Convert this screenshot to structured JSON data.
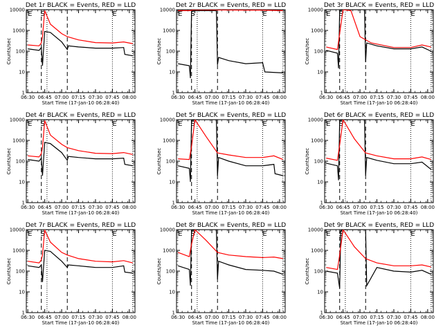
{
  "time_ticks": [
    "06:30",
    "06:45",
    "07:00",
    "07:15",
    "07:30",
    "07:45",
    "08:00"
  ],
  "y_ticks": [
    "1",
    "10",
    "100",
    "1000",
    "10000"
  ],
  "xlabel": "Start Time (17-Jan-10 06:28:40)",
  "ylabel": "Counts/sec",
  "chart_data": [
    {
      "type": "line",
      "detector": "1r",
      "title": "Det 1r BLACK = Events, RED = LLD",
      "xlabel": "Start Time (17-Jan-10 06:28:40)",
      "ylabel": "Counts/sec",
      "x_range": [
        "06:28:40",
        "08:05"
      ],
      "y_range": [
        1,
        10000
      ],
      "y_scale": "log",
      "markers": {
        "E_times": [
          "06:30",
          "07:45"
        ],
        "S_times": [
          "06:43",
          "06:43"
        ]
      },
      "dashed_times": [
        "06:42",
        "07:05"
      ],
      "dotted_times": [
        "06:47",
        "07:45",
        "08:03"
      ],
      "series": [
        {
          "name": "BLACK = Events",
          "color": "#000000",
          "x": [
            "06:30",
            "06:40",
            "06:42",
            "06:43",
            "06:45",
            "06:50",
            "07:00",
            "07:05",
            "07:06",
            "07:15",
            "07:30",
            "07:45",
            "07:55",
            "07:56",
            "08:03"
          ],
          "values": [
            130,
            110,
            150,
            20,
            900,
            800,
            280,
            120,
            180,
            160,
            140,
            140,
            150,
            70,
            60
          ]
        },
        {
          "name": "RED = LLD",
          "color": "#ff0000",
          "x": [
            "06:30",
            "06:40",
            "06:42",
            "06:43",
            "06:45",
            "06:50",
            "07:00",
            "07:05",
            "07:15",
            "07:30",
            "07:45",
            "07:55",
            "08:03"
          ],
          "values": [
            200,
            180,
            250,
            500,
            9000,
            2000,
            700,
            500,
            350,
            260,
            250,
            280,
            230
          ]
        }
      ]
    },
    {
      "type": "line",
      "detector": "2r",
      "title": "Det 2r BLACK = Events, RED = LLD",
      "xlabel": "Start Time (17-Jan-10 06:28:40)",
      "ylabel": "Counts/sec",
      "x_range": [
        "06:28:40",
        "08:05"
      ],
      "y_range": [
        1,
        10000
      ],
      "y_scale": "log",
      "markers": {
        "E_times": [
          "06:30",
          "07:45"
        ],
        "S_times": [
          "06:43",
          "06:43"
        ]
      },
      "dashed_times": [
        "06:42",
        "07:05"
      ],
      "dotted_times": [
        "06:47",
        "07:45",
        "08:03"
      ],
      "series": [
        {
          "name": "BLACK = Events",
          "color": "#000000",
          "x": [
            "06:30",
            "06:40",
            "06:41",
            "06:42",
            "06:43",
            "07:04",
            "07:05",
            "07:06",
            "07:15",
            "07:30",
            "07:45",
            "07:47",
            "08:03"
          ],
          "values": [
            25,
            20,
            5,
            8000,
            9000,
            9000,
            22,
            50,
            35,
            25,
            28,
            10,
            9
          ]
        },
        {
          "name": "RED = LLD",
          "color": "#ff0000",
          "x": [
            "06:30",
            "06:41",
            "06:42",
            "06:45",
            "07:00",
            "07:30",
            "07:45",
            "08:03"
          ],
          "values": [
            9000,
            9000,
            9500,
            10000,
            9800,
            9500,
            9500,
            9000
          ]
        }
      ]
    },
    {
      "type": "line",
      "detector": "3r",
      "title": "Det 3r BLACK = Events, RED = LLD",
      "xlabel": "Start Time (17-Jan-10 06:28:40)",
      "ylabel": "Counts/sec",
      "x_range": [
        "06:28:40",
        "08:05"
      ],
      "y_range": [
        1,
        10000
      ],
      "y_scale": "log",
      "markers": {
        "E_times": [
          "06:30",
          "07:45"
        ],
        "S_times": [
          "06:43",
          "06:43"
        ]
      },
      "dashed_times": [
        "06:42",
        "07:05"
      ],
      "dotted_times": [
        "06:47",
        "07:45",
        "08:03"
      ],
      "series": [
        {
          "name": "BLACK = Events",
          "color": "#000000",
          "x": [
            "06:30",
            "06:40",
            "06:41",
            "06:42",
            "06:45",
            "07:04",
            "07:05",
            "07:06",
            "07:15",
            "07:30",
            "07:45",
            "07:55",
            "08:03"
          ],
          "values": [
            110,
            80,
            15,
            9000,
            10000,
            10000,
            30,
            250,
            180,
            130,
            130,
            160,
            100
          ]
        },
        {
          "name": "RED = LLD",
          "color": "#ff0000",
          "x": [
            "06:30",
            "06:40",
            "06:42",
            "06:45",
            "06:52",
            "07:00",
            "07:10",
            "07:30",
            "07:45",
            "07:55",
            "08:03"
          ],
          "values": [
            160,
            120,
            700,
            10000,
            9000,
            500,
            250,
            150,
            150,
            200,
            160
          ]
        }
      ]
    },
    {
      "type": "line",
      "detector": "4r",
      "title": "Det 4r BLACK = Events, RED = LLD",
      "xlabel": "Start Time (17-Jan-10 06:28:40)",
      "ylabel": "Counts/sec",
      "x_range": [
        "06:28:40",
        "08:05"
      ],
      "y_range": [
        1,
        10000
      ],
      "y_scale": "log",
      "markers": {
        "E_times": [
          "06:30",
          "07:45"
        ],
        "S_times": [
          "06:43",
          "06:43"
        ]
      },
      "dashed_times": [
        "06:42",
        "07:05"
      ],
      "dotted_times": [
        "06:47",
        "07:45",
        "08:03"
      ],
      "series": [
        {
          "name": "BLACK = Events",
          "color": "#000000",
          "x": [
            "06:30",
            "06:40",
            "06:42",
            "06:43",
            "06:45",
            "06:50",
            "07:00",
            "07:05",
            "07:06",
            "07:15",
            "07:30",
            "07:45",
            "07:55",
            "07:56",
            "08:03"
          ],
          "values": [
            120,
            100,
            140,
            20,
            800,
            700,
            260,
            110,
            170,
            150,
            130,
            130,
            140,
            70,
            60
          ]
        },
        {
          "name": "RED = LLD",
          "color": "#ff0000",
          "x": [
            "06:30",
            "06:40",
            "06:42",
            "06:43",
            "06:45",
            "06:50",
            "07:00",
            "07:05",
            "07:15",
            "07:30",
            "07:45",
            "07:55",
            "08:03"
          ],
          "values": [
            180,
            160,
            230,
            450,
            9000,
            1800,
            650,
            450,
            320,
            240,
            230,
            260,
            210
          ]
        }
      ]
    },
    {
      "type": "line",
      "detector": "5r",
      "title": "Det 5r BLACK = Events, RED = LLD",
      "xlabel": "Start Time (17-Jan-10 06:28:40)",
      "ylabel": "Counts/sec",
      "x_range": [
        "06:28:40",
        "08:05"
      ],
      "y_range": [
        1,
        10000
      ],
      "y_scale": "log",
      "markers": {
        "E_times": [
          "06:30",
          "07:45"
        ],
        "S_times": [
          "06:43",
          "06:43"
        ]
      },
      "dashed_times": [
        "06:42",
        "07:05"
      ],
      "dotted_times": [
        "06:47",
        "07:45",
        "08:03"
      ],
      "series": [
        {
          "name": "BLACK = Events",
          "color": "#000000",
          "x": [
            "06:30",
            "06:40",
            "06:41",
            "06:42",
            "06:45",
            "07:04",
            "07:05",
            "07:06",
            "07:15",
            "07:30",
            "07:45",
            "07:55",
            "07:56",
            "08:03"
          ],
          "values": [
            60,
            45,
            10,
            9000,
            10000,
            10000,
            20,
            150,
            100,
            60,
            60,
            70,
            25,
            20
          ]
        },
        {
          "name": "RED = LLD",
          "color": "#ff0000",
          "x": [
            "06:30",
            "06:40",
            "06:42",
            "06:45",
            "06:55",
            "07:05",
            "07:15",
            "07:30",
            "07:45",
            "07:55",
            "08:03"
          ],
          "values": [
            130,
            120,
            500,
            10000,
            1500,
            250,
            200,
            150,
            150,
            180,
            120
          ]
        }
      ]
    },
    {
      "type": "line",
      "detector": "6r",
      "title": "Det 6r BLACK = Events, RED = LLD",
      "xlabel": "Start Time (17-Jan-10 06:28:40)",
      "ylabel": "Counts/sec",
      "x_range": [
        "06:28:40",
        "08:05"
      ],
      "y_range": [
        1,
        10000
      ],
      "y_scale": "log",
      "markers": {
        "E_times": [
          "06:30",
          "07:45"
        ],
        "S_times": [
          "06:43",
          "06:43"
        ]
      },
      "dashed_times": [
        "06:42",
        "07:05"
      ],
      "dotted_times": [
        "06:47",
        "07:45",
        "08:03"
      ],
      "series": [
        {
          "name": "BLACK = Events",
          "color": "#000000",
          "x": [
            "06:30",
            "06:40",
            "06:41",
            "06:42",
            "06:45",
            "07:04",
            "07:05",
            "07:06",
            "07:15",
            "07:30",
            "07:45",
            "07:55",
            "08:03"
          ],
          "values": [
            80,
            60,
            12,
            9000,
            10000,
            10000,
            20,
            150,
            110,
            75,
            75,
            90,
            40
          ]
        },
        {
          "name": "RED = LLD",
          "color": "#ff0000",
          "x": [
            "06:30",
            "06:40",
            "06:42",
            "06:45",
            "06:55",
            "07:05",
            "07:15",
            "07:30",
            "07:45",
            "07:55",
            "08:03"
          ],
          "values": [
            140,
            110,
            600,
            10000,
            1200,
            250,
            180,
            130,
            130,
            160,
            120
          ]
        }
      ]
    },
    {
      "type": "line",
      "detector": "7r",
      "title": "Det 7r BLACK = Events, RED = LLD",
      "xlabel": "Start Time (17-Jan-10 06:28:40)",
      "ylabel": "Counts/sec",
      "x_range": [
        "06:28:40",
        "08:05"
      ],
      "y_range": [
        1,
        10000
      ],
      "y_scale": "log",
      "markers": {
        "E_times": [
          "06:30",
          "07:45"
        ],
        "S_times": [
          "06:43",
          "06:43"
        ]
      },
      "dashed_times": [
        "06:42",
        "07:05"
      ],
      "dotted_times": [
        "06:47",
        "07:45",
        "08:03"
      ],
      "series": [
        {
          "name": "BLACK = Events",
          "color": "#000000",
          "x": [
            "06:30",
            "06:40",
            "06:42",
            "06:43",
            "06:45",
            "06:50",
            "07:00",
            "07:05",
            "07:06",
            "07:15",
            "07:30",
            "07:45",
            "07:55",
            "07:56",
            "08:03"
          ],
          "values": [
            180,
            150,
            200,
            30,
            1000,
            900,
            300,
            150,
            200,
            180,
            150,
            150,
            180,
            90,
            80
          ]
        },
        {
          "name": "RED = LLD",
          "color": "#ff0000",
          "x": [
            "06:30",
            "06:40",
            "06:42",
            "06:43",
            "06:45",
            "06:50",
            "07:00",
            "07:05",
            "07:15",
            "07:30",
            "07:45",
            "07:55",
            "08:03"
          ],
          "values": [
            300,
            250,
            350,
            600,
            9500,
            2500,
            800,
            600,
            400,
            300,
            280,
            320,
            250
          ]
        }
      ]
    },
    {
      "type": "line",
      "detector": "8r",
      "title": "Det 8r BLACK = Events, RED = LLD",
      "xlabel": "Start Time (17-Jan-10 06:28:40)",
      "ylabel": "Counts/sec",
      "x_range": [
        "06:28:40",
        "08:05"
      ],
      "y_range": [
        1,
        10000
      ],
      "y_scale": "log",
      "markers": {
        "E_times": [
          "06:30",
          "07:45"
        ],
        "S_times": [
          "06:43",
          "06:43"
        ]
      },
      "dashed_times": [
        "06:42",
        "07:05"
      ],
      "dotted_times": [
        "06:47",
        "07:45",
        "08:03"
      ],
      "series": [
        {
          "name": "BLACK = Events",
          "color": "#000000",
          "x": [
            "06:30",
            "06:40",
            "06:41",
            "06:42",
            "06:45",
            "07:04",
            "07:05",
            "07:06",
            "07:15",
            "07:30",
            "07:45",
            "07:55",
            "08:03"
          ],
          "values": [
            180,
            120,
            20,
            9000,
            10000,
            10000,
            40,
            300,
            200,
            120,
            110,
            100,
            70
          ]
        },
        {
          "name": "RED = LLD",
          "color": "#ff0000",
          "x": [
            "06:30",
            "06:40",
            "06:42",
            "06:45",
            "06:55",
            "07:05",
            "07:15",
            "07:30",
            "07:45",
            "07:55",
            "08:03"
          ],
          "values": [
            800,
            500,
            2000,
            10000,
            3000,
            800,
            600,
            500,
            450,
            480,
            400
          ]
        }
      ]
    },
    {
      "type": "line",
      "detector": "9r",
      "title": "Det 9r BLACK = Events, RED = LLD",
      "xlabel": "Start Time (17-Jan-10 06:28:40)",
      "ylabel": "Counts/sec",
      "x_range": [
        "06:28:40",
        "08:05"
      ],
      "y_range": [
        1,
        10000
      ],
      "y_scale": "log",
      "markers": {
        "E_times": [
          "06:30",
          "07:45"
        ],
        "S_times": [
          "06:43",
          "06:43"
        ]
      },
      "dashed_times": [
        "06:42",
        "07:05"
      ],
      "dotted_times": [
        "06:47",
        "07:45",
        "08:03"
      ],
      "series": [
        {
          "name": "BLACK = Events",
          "color": "#000000",
          "x": [
            "06:30",
            "06:40",
            "06:42",
            "06:43",
            "06:45",
            "06:50",
            "07:00",
            "07:05",
            "07:06",
            "07:15",
            "07:30",
            "07:45",
            "07:55",
            "08:03"
          ],
          "values": [
            100,
            80,
            15,
            9000,
            10000,
            10000,
            10000,
            10000,
            20,
            150,
            100,
            90,
            110,
            70
          ]
        },
        {
          "name": "RED = LLD",
          "color": "#ff0000",
          "x": [
            "06:30",
            "06:40",
            "06:42",
            "06:45",
            "06:55",
            "07:05",
            "07:15",
            "07:30",
            "07:45",
            "07:55",
            "08:03"
          ],
          "values": [
            150,
            120,
            600,
            10000,
            1500,
            400,
            250,
            180,
            180,
            200,
            160
          ]
        }
      ]
    }
  ],
  "marker_labels": {
    "E": "E",
    "S": "S"
  }
}
